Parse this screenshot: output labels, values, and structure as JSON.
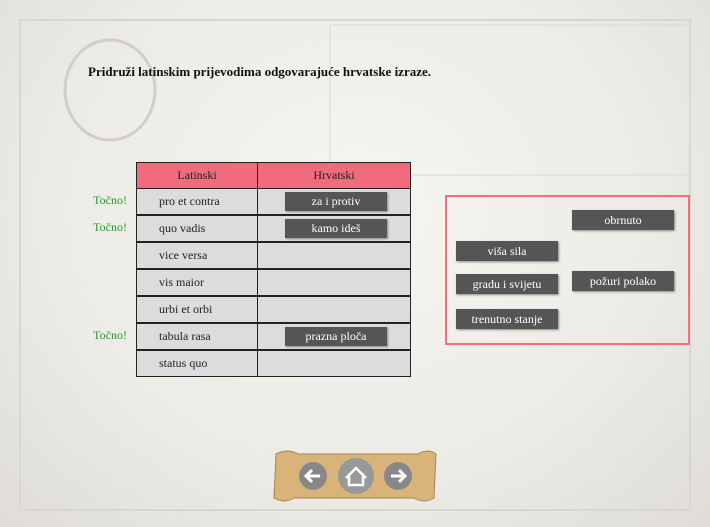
{
  "instruction": "Pridruži latinskim prijevodima odgovarajuće hrvatske izraze.",
  "table": {
    "headers": [
      "Latinski",
      "Hrvatski"
    ],
    "rows": [
      {
        "latin": "pro et contra",
        "answer": "za i protiv",
        "feedback": "Točno!"
      },
      {
        "latin": "quo vadis",
        "answer": "kamo ideš",
        "feedback": "Točno!"
      },
      {
        "latin": "vice versa"
      },
      {
        "latin": "vis maior"
      },
      {
        "latin": "urbi et orbi"
      },
      {
        "latin": "tabula rasa",
        "answer": "prazna ploča",
        "feedback": "Točno!"
      },
      {
        "latin": "status quo"
      }
    ]
  },
  "options": [
    "obrnuto",
    "viša sila",
    "gradu i svijetu",
    "požuri polako",
    "trenutno stanje"
  ]
}
